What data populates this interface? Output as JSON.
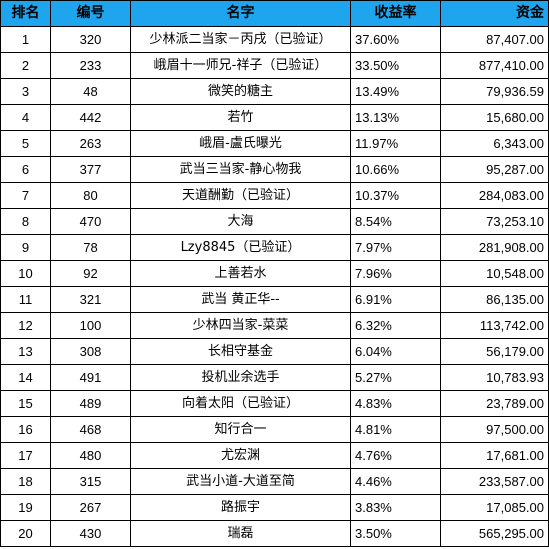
{
  "header": {
    "rank": "排名",
    "id": "编号",
    "name": "名字",
    "rate": "收益率",
    "fund": "资金"
  },
  "rows": [
    {
      "rank": "1",
      "id": "320",
      "name": "少林派二当家－丙戌（已验证）",
      "rate": "37.60%",
      "fund": "87,407.00"
    },
    {
      "rank": "2",
      "id": "233",
      "name": "峨眉十一师兄-祥子（已验证）",
      "rate": "33.50%",
      "fund": "877,410.00"
    },
    {
      "rank": "3",
      "id": "48",
      "name": "微笑的糖主",
      "rate": "13.49%",
      "fund": "79,936.59"
    },
    {
      "rank": "4",
      "id": "442",
      "name": "若竹",
      "rate": "13.13%",
      "fund": "15,680.00"
    },
    {
      "rank": "5",
      "id": "263",
      "name": "峨眉-盧氏曝光",
      "rate": "11.97%",
      "fund": "6,343.00"
    },
    {
      "rank": "6",
      "id": "377",
      "name": "武当三当家-静心物我",
      "rate": "10.66%",
      "fund": "95,287.00"
    },
    {
      "rank": "7",
      "id": "80",
      "name": "天道酬勤（已验证）",
      "rate": "10.37%",
      "fund": "284,083.00"
    },
    {
      "rank": "8",
      "id": "470",
      "name": "大海",
      "rate": "8.54%",
      "fund": "73,253.10"
    },
    {
      "rank": "9",
      "id": "78",
      "name": "Lzy8845（已验证）",
      "rate": "7.97%",
      "fund": "281,908.00"
    },
    {
      "rank": "10",
      "id": "92",
      "name": "上善若水",
      "rate": "7.96%",
      "fund": "10,548.00"
    },
    {
      "rank": "11",
      "id": "321",
      "name": "武当 黄正华--",
      "rate": "6.91%",
      "fund": "86,135.00"
    },
    {
      "rank": "12",
      "id": "100",
      "name": "少林四当家-菜菜",
      "rate": "6.32%",
      "fund": "113,742.00"
    },
    {
      "rank": "13",
      "id": "308",
      "name": "长相守基金",
      "rate": "6.04%",
      "fund": "56,179.00"
    },
    {
      "rank": "14",
      "id": "491",
      "name": "投机业余选手",
      "rate": "5.27%",
      "fund": "10,783.93"
    },
    {
      "rank": "15",
      "id": "489",
      "name": "向着太阳（已验证）",
      "rate": "4.83%",
      "fund": "23,789.00"
    },
    {
      "rank": "16",
      "id": "468",
      "name": "知行合一",
      "rate": "4.81%",
      "fund": "97,500.00"
    },
    {
      "rank": "17",
      "id": "480",
      "name": "尤宏渊",
      "rate": "4.76%",
      "fund": "17,681.00"
    },
    {
      "rank": "18",
      "id": "315",
      "name": "武当小道-大道至简",
      "rate": "4.46%",
      "fund": "233,587.00"
    },
    {
      "rank": "19",
      "id": "267",
      "name": "路振宇",
      "rate": "3.83%",
      "fund": "17,085.00"
    },
    {
      "rank": "20",
      "id": "430",
      "name": "瑞磊",
      "rate": "3.50%",
      "fund": "565,295.00"
    }
  ],
  "colors": {
    "header_bg": "#1fa5ee",
    "border": "#000000",
    "text": "#000000"
  }
}
